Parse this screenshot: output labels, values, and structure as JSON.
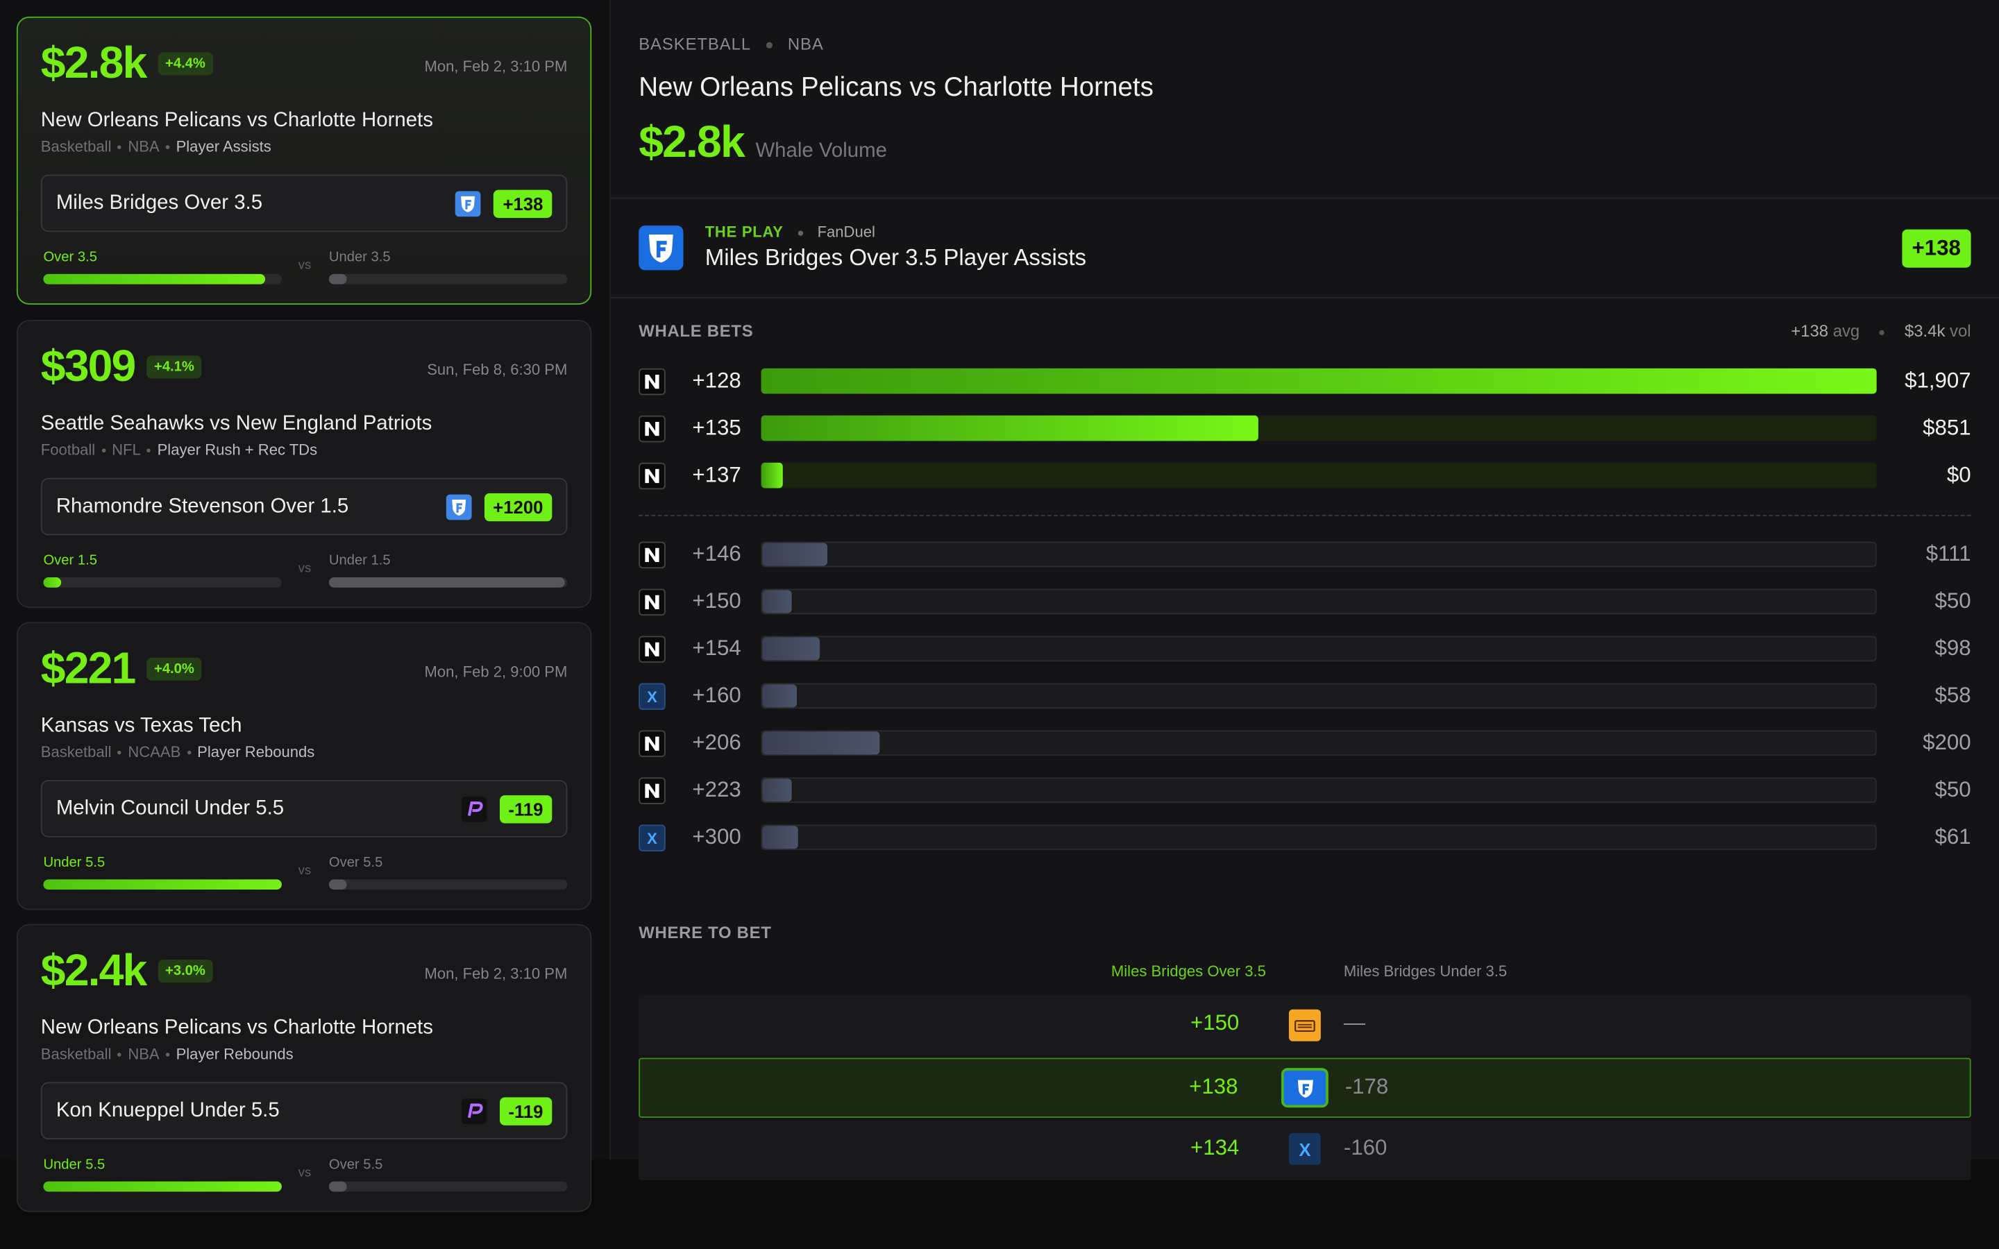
{
  "feed": [
    {
      "amount": "$2.8k",
      "change": "+4.4%",
      "time": "Mon, Feb 2, 3:10 PM",
      "matchup": "New Orleans Pelicans vs Charlotte Hornets",
      "sport": "Basketball",
      "league": "NBA",
      "market": "Player Assists",
      "pick": "Miles Bridges Over 3.5",
      "odds": "+138",
      "side_a": "Over 3.5",
      "vs": "vs",
      "side_b": "Under 3.5"
    },
    {
      "amount": "$309",
      "change": "+4.1%",
      "time": "Sun, Feb 8, 6:30 PM",
      "matchup": "Seattle Seahawks vs New England Patriots",
      "sport": "Football",
      "league": "NFL",
      "market": "Player Rush + Rec TDs",
      "pick": "Rhamondre Stevenson Over 1.5",
      "odds": "+1200",
      "side_a": "Over 1.5",
      "vs": "vs",
      "side_b": "Under 1.5"
    },
    {
      "amount": "$221",
      "change": "+4.0%",
      "time": "Mon, Feb 2, 9:00 PM",
      "matchup": "Kansas vs Texas Tech",
      "sport": "Basketball",
      "league": "NCAAB",
      "market": "Player Rebounds",
      "pick": "Melvin Council Under 5.5",
      "odds": "-119",
      "side_a": "Under 5.5",
      "vs": "vs",
      "side_b": "Over 5.5"
    },
    {
      "amount": "$2.4k",
      "change": "+3.0%",
      "time": "Mon, Feb 2, 3:10 PM",
      "matchup": "New Orleans Pelicans vs Charlotte Hornets",
      "sport": "Basketball",
      "league": "NBA",
      "market": "Player Rebounds",
      "pick": "Kon Knueppel Under 5.5",
      "odds": "-119",
      "side_a": "Under 5.5",
      "vs": "vs",
      "side_b": "Over 5.5"
    }
  ],
  "detail": {
    "sport": "BASKETBALL",
    "league": "NBA",
    "title": "New Orleans Pelicans vs Charlotte Hornets",
    "volume": "$2.8k",
    "volume_label": "Whale Volume",
    "play_label": "THE PLAY",
    "book": "FanDuel",
    "play": "Miles Bridges Over 3.5 Player Assists",
    "odds": "+138"
  },
  "whale_bets": {
    "title": "WHALE BETS",
    "avg": "+138",
    "avg_label": "avg",
    "vol": "$3.4k",
    "vol_label": "vol",
    "top": [
      {
        "odds": "+128",
        "amount": 1907,
        "amount_label": "$1,907"
      },
      {
        "odds": "+135",
        "amount": 851,
        "amount_label": "$851"
      },
      {
        "odds": "+137",
        "amount": 0,
        "amount_label": "$0"
      }
    ],
    "others": [
      {
        "odds": "+146",
        "amount": 111,
        "amount_label": "$111"
      },
      {
        "odds": "+150",
        "amount": 50,
        "amount_label": "$50"
      },
      {
        "odds": "+154",
        "amount": 98,
        "amount_label": "$98"
      },
      {
        "odds": "+160",
        "amount": 58,
        "amount_label": "$58",
        "icon_text": "X"
      },
      {
        "odds": "+206",
        "amount": 200,
        "amount_label": "$200"
      },
      {
        "odds": "+223",
        "amount": 50,
        "amount_label": "$50"
      },
      {
        "odds": "+300",
        "amount": 61,
        "amount_label": "$61",
        "icon_text": "X"
      }
    ]
  },
  "where_to_bet": {
    "title": "WHERE TO BET",
    "col_a": "Miles Bridges Over 3.5",
    "col_b": "Miles Bridges Under 3.5",
    "rows": [
      {
        "over": "+150",
        "under": "—"
      },
      {
        "over": "+138",
        "under": "-178"
      },
      {
        "over": "+134",
        "under": "-160",
        "icon_text": "X"
      }
    ]
  }
}
